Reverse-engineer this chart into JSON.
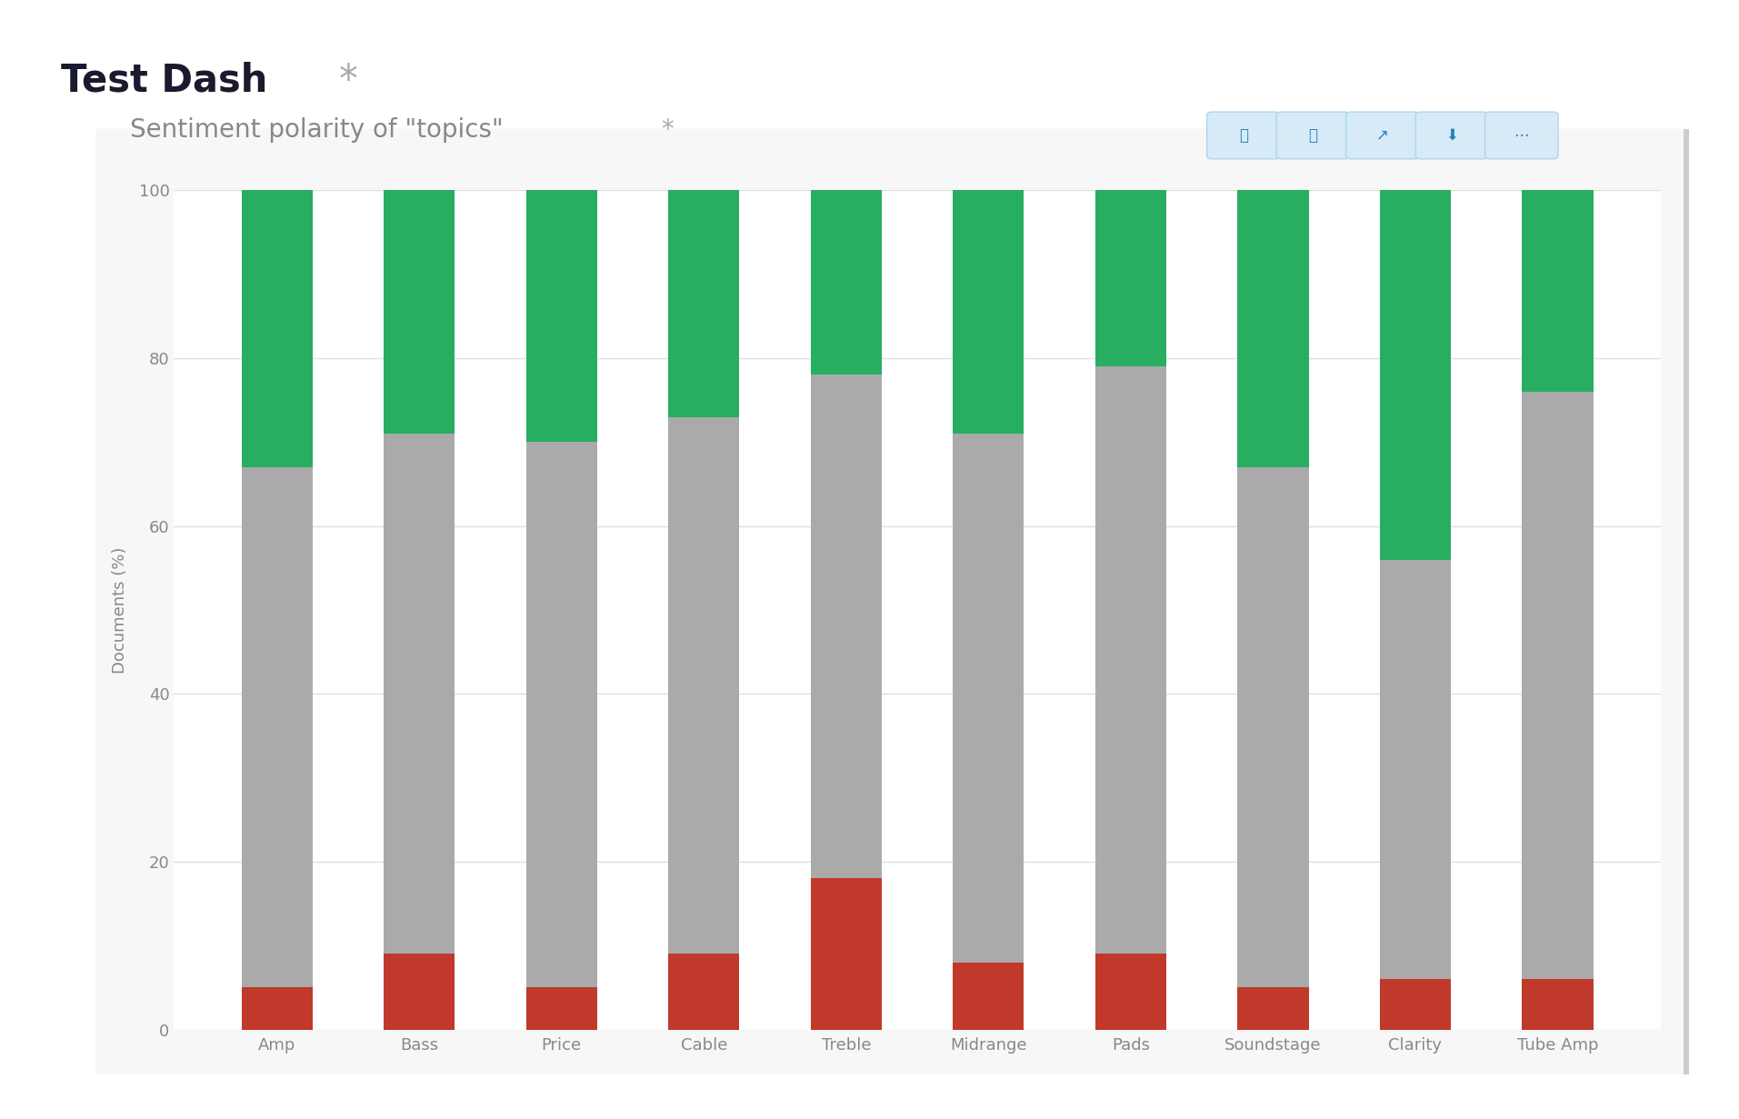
{
  "categories": [
    "Amp",
    "Bass",
    "Price",
    "Cable",
    "Treble",
    "Midrange",
    "Pads",
    "Soundstage",
    "Clarity",
    "Tube Amp"
  ],
  "negative": [
    5,
    9,
    5,
    9,
    18,
    8,
    9,
    5,
    6,
    6
  ],
  "neutral": [
    62,
    62,
    65,
    64,
    60,
    63,
    70,
    62,
    50,
    70
  ],
  "positive": [
    33,
    29,
    30,
    27,
    22,
    29,
    21,
    33,
    44,
    24
  ],
  "color_negative": "#c0392b",
  "color_neutral": "#aaaaaa",
  "color_positive": "#27ae60",
  "ylabel": "Documents (%)",
  "ylim": [
    0,
    100
  ],
  "yticks": [
    0,
    20,
    40,
    60,
    80,
    100
  ],
  "bar_width": 0.5,
  "background_color": "#ffffff",
  "panel_color": "#f7f7f7",
  "grid_color": "#e0e0e0",
  "page_title": "Test Dash ",
  "page_title_star": "*",
  "chart_subtitle": "Sentiment polarity of \"topics\" ",
  "chart_subtitle_star": "*",
  "page_title_fontsize": 30,
  "chart_subtitle_fontsize": 20,
  "tick_fontsize": 13,
  "ylabel_fontsize": 13,
  "tick_color": "#888888",
  "ylabel_color": "#888888",
  "right_border_color": "#cccccc",
  "icon_color": "#2980b9"
}
